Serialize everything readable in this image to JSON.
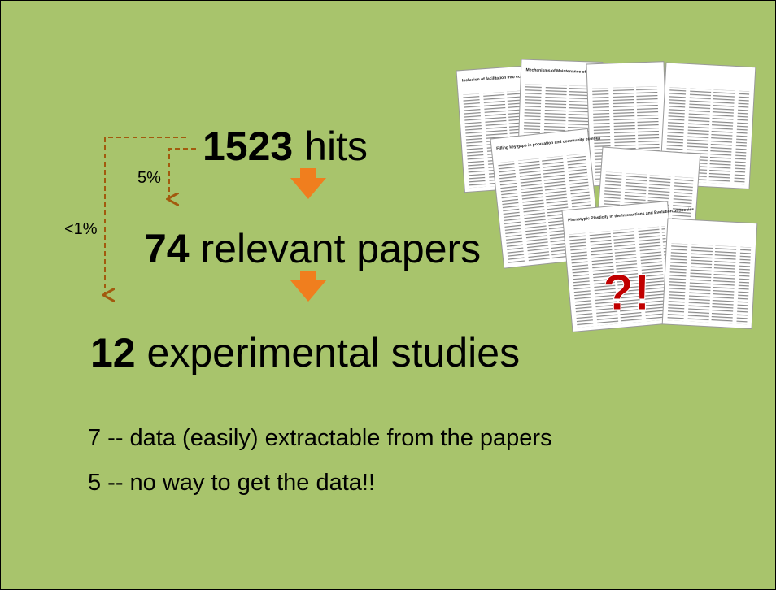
{
  "funnel": [
    {
      "number": "1523",
      "label": "hits"
    },
    {
      "number": "74",
      "label": "relevant papers"
    },
    {
      "number": "12",
      "label": "experimental studies"
    }
  ],
  "ratios": {
    "relevant": "5%",
    "experimental": "<1%"
  },
  "papers": {
    "titles": [
      "Inclusion of facilitation into ecological theory",
      "Phenotypic Plasticity in the Interactions and Evolution of Species",
      "Mechanisms of Maintenance of Species Diversity",
      "Filling key gaps in population and community ecology"
    ],
    "mark": "?!"
  },
  "notes": [
    "7 -- data (easily) extractable from the papers",
    "5 -- no way to get the data!!"
  ]
}
